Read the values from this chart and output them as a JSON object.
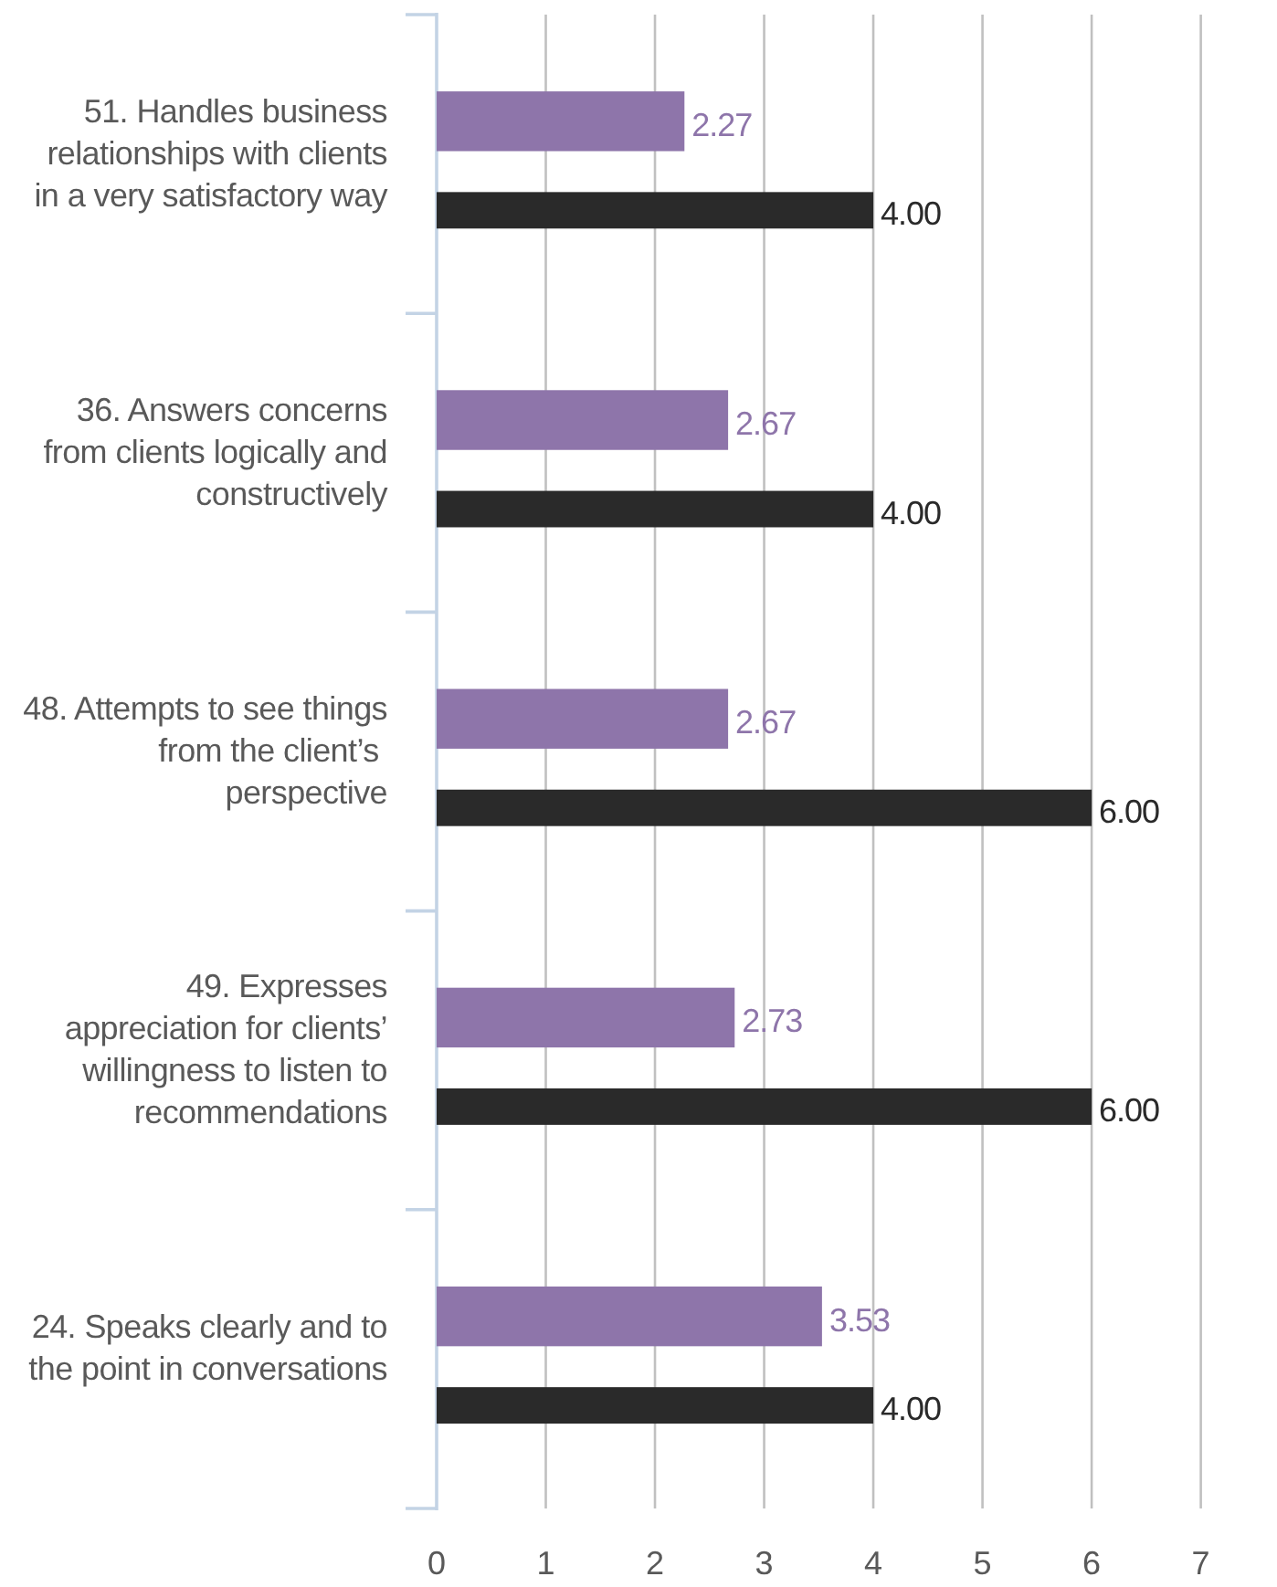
{
  "chart_data": {
    "type": "bar",
    "orientation": "horizontal",
    "categories": [
      "51. Handles business\nrelationships with clients\nin a very satisfactory way",
      "36. Answers concerns\nfrom clients logically and\nconstructively",
      "48. Attempts to see things\nfrom the client’s \nperspective",
      "49. Expresses\nappreciation for clients’\nwillingness to listen to\nrecommendations",
      "24. Speaks clearly and to\nthe point in conversations"
    ],
    "series": [
      {
        "color": "#8e75aa",
        "values": [
          2.27,
          2.67,
          2.67,
          2.73,
          3.53
        ],
        "value_labels": [
          "2.27",
          "2.67",
          "2.67",
          "2.73",
          "3.53"
        ]
      },
      {
        "color": "#2a2a2a",
        "values": [
          4,
          4,
          6,
          6,
          4
        ],
        "value_labels": [
          "4.00",
          "4.00",
          "6.00",
          "6.00",
          "4.00"
        ]
      }
    ],
    "xlim": [
      0,
      7
    ],
    "xticks": [
      0,
      1,
      2,
      3,
      4,
      5,
      6,
      7
    ],
    "grid": "x"
  }
}
